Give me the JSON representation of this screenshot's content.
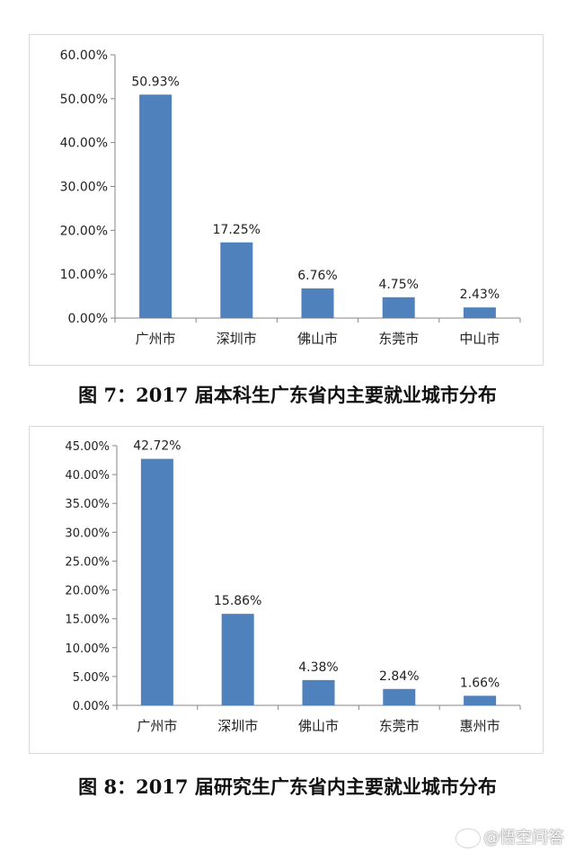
{
  "chart_data": [
    {
      "type": "bar",
      "categories": [
        "广州市",
        "深圳市",
        "佛山市",
        "东莞市",
        "中山市"
      ],
      "values": [
        50.93,
        17.25,
        6.76,
        4.75,
        2.43
      ],
      "value_labels": [
        "50.93%",
        "17.25%",
        "6.76%",
        "4.75%",
        "2.43%"
      ],
      "yticks": [
        "0.00%",
        "10.00%",
        "20.00%",
        "30.00%",
        "40.00%",
        "50.00%",
        "60.00%"
      ],
      "ylim": [
        0,
        60
      ],
      "ystep": 10,
      "bar_color": "#4f81bd",
      "title": "",
      "xlabel": "",
      "ylabel": "",
      "grid": false
    },
    {
      "type": "bar",
      "categories": [
        "广州市",
        "深圳市",
        "佛山市",
        "东莞市",
        "惠州市"
      ],
      "values": [
        42.72,
        15.86,
        4.38,
        2.84,
        1.66
      ],
      "value_labels": [
        "42.72%",
        "15.86%",
        "4.38%",
        "2.84%",
        "1.66%"
      ],
      "yticks": [
        "0.00%",
        "5.00%",
        "10.00%",
        "15.00%",
        "20.00%",
        "25.00%",
        "30.00%",
        "35.00%",
        "40.00%",
        "45.00%"
      ],
      "ylim": [
        0,
        45
      ],
      "ystep": 5,
      "bar_color": "#4f81bd",
      "title": "",
      "xlabel": "",
      "ylabel": "",
      "grid": false
    }
  ],
  "captions": {
    "fig7": "图 7：2017 届本科生广东省内主要就业城市分布",
    "fig8": "图 8：2017 届研究生广东省内主要就业城市分布"
  },
  "watermark": "@悟空问答"
}
